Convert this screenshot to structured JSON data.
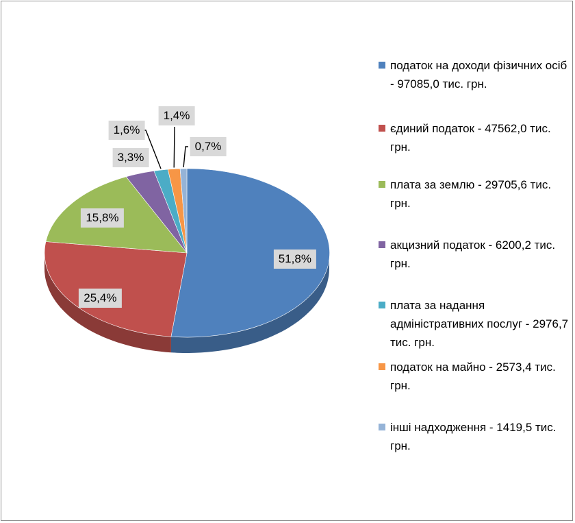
{
  "chart_data": {
    "type": "pie",
    "title": "",
    "categories": [
      "податок на доходи фізичних осіб - 97085,0 тис. грн.",
      "єдиний податок - 47562,0 тис. грн.",
      "плата за землю - 29705,6 тис. грн.",
      "акцизний податок - 6200,2 тис. грн.",
      "плата за надання адміністративних послуг - 2976,7 тис. грн.",
      "податок на майно - 2573,4 тис. грн.",
      "інші надходження - 1419,5 тис. грн."
    ],
    "values": [
      97085.0,
      47562.0,
      29705.6,
      6200.2,
      2976.7,
      2573.4,
      1419.5
    ],
    "data_labels": [
      "51,8%",
      "25,4%",
      "15,8%",
      "3,3%",
      "1,6%",
      "1,4%",
      "0,7%"
    ],
    "colors": [
      "#4F81BD",
      "#C0504D",
      "#9BBB59",
      "#8064A2",
      "#4BACC6",
      "#F79646",
      "#95B3D7"
    ],
    "legend_position": "right",
    "style": "3d-pie"
  }
}
